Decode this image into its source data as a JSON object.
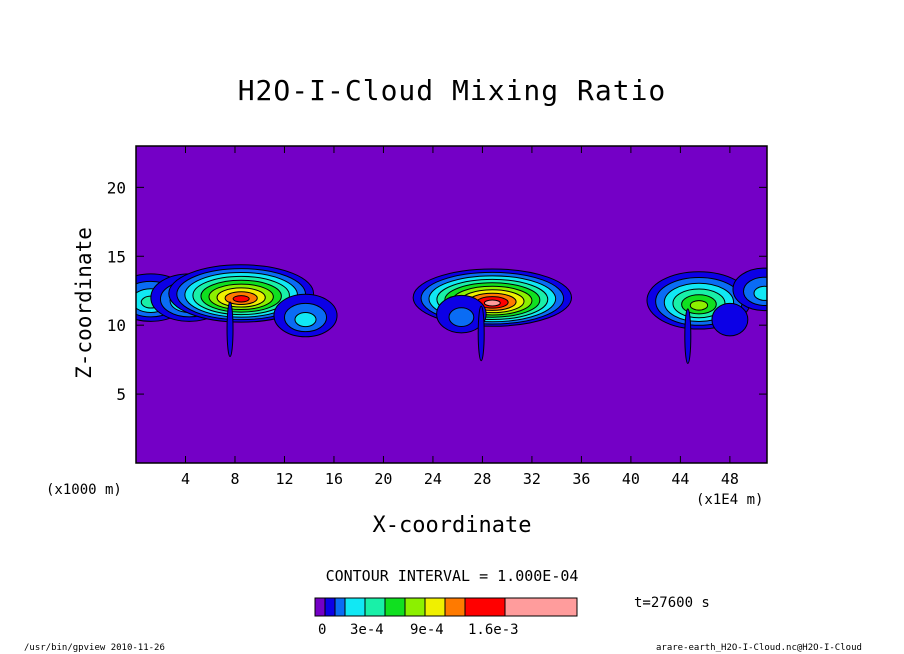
{
  "chart_data": {
    "type": "heatmap",
    "title": "H2O-I-Cloud Mixing Ratio",
    "xlabel": "X-coordinate",
    "ylabel": "Z-coordinate",
    "x_unit_label": "(x1000 m)",
    "x_scale_label": "(x1E4 m)",
    "xlim": [
      0,
      51
    ],
    "ylim": [
      0,
      23
    ],
    "x_ticks": [
      4,
      8,
      12,
      16,
      20,
      24,
      28,
      32,
      36,
      40,
      44,
      48
    ],
    "y_ticks": [
      5,
      10,
      15,
      20
    ],
    "contour_interval_label": "CONTOUR INTERVAL = 1.000E-04",
    "contour_interval": 0.0001,
    "time_label": "t=27600 s",
    "background_color": "#7400c6",
    "colorbar": {
      "tick_labels": [
        "0",
        "3e-4",
        "9e-4",
        "1.6e-3"
      ],
      "colors": [
        "#7400c6",
        "#0c00e6",
        "#0a6cf4",
        "#11e8f4",
        "#19f0a8",
        "#10e020",
        "#8cf000",
        "#f0f000",
        "#ff7a00",
        "#ff0000",
        "#ff9c9c"
      ]
    },
    "features": [
      {
        "x": 1.2,
        "z": 12.0,
        "peak": 0.0004
      },
      {
        "x": 4.3,
        "z": 12.0,
        "peak": 0.0004
      },
      {
        "x": 8.5,
        "z": 12.3,
        "peak": 0.0009
      },
      {
        "x": 13.7,
        "z": 10.7,
        "peak": 0.0003
      },
      {
        "x": 28.8,
        "z": 12.0,
        "peak": 0.001
      },
      {
        "x": 26.3,
        "z": 10.8,
        "peak": 0.0002
      },
      {
        "x": 45.5,
        "z": 11.8,
        "peak": 0.0006
      },
      {
        "x": 48.0,
        "z": 10.4,
        "peak": 0.0001
      },
      {
        "x": 50.8,
        "z": 12.6,
        "peak": 0.0003
      }
    ]
  },
  "footer": {
    "left": "/usr/bin/gpview  2010-11-26",
    "right": "arare-earth_H2O-I-Cloud.nc@H2O-I-Cloud"
  },
  "colors": {
    "axis": "#000000",
    "outline": "#000000"
  }
}
